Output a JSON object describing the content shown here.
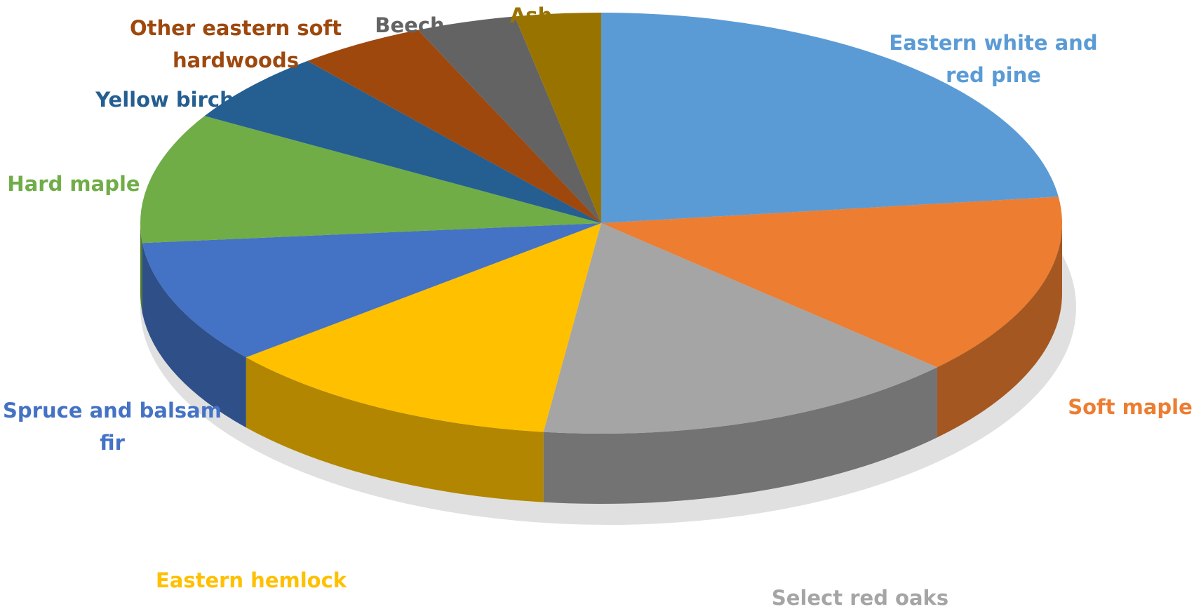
{
  "chart_data": {
    "type": "pie",
    "categories": [
      "Eastern white and red pine",
      "Soft maple",
      "Select red oaks",
      "Eastern hemlock",
      "Spruce and balsam fir",
      "Hard maple",
      "Yellow birch",
      "Other eastern soft hardwoods",
      "Beech",
      "Ash"
    ],
    "values": [
      23,
      14,
      15,
      12,
      9.5,
      10,
      5.5,
      4.5,
      3.5,
      3
    ],
    "colors": [
      "#5b9bd5",
      "#ed7d31",
      "#a5a5a5",
      "#ffc000",
      "#4472c4",
      "#70ad47",
      "#255e91",
      "#9e480e",
      "#636363",
      "#997300"
    ]
  }
}
